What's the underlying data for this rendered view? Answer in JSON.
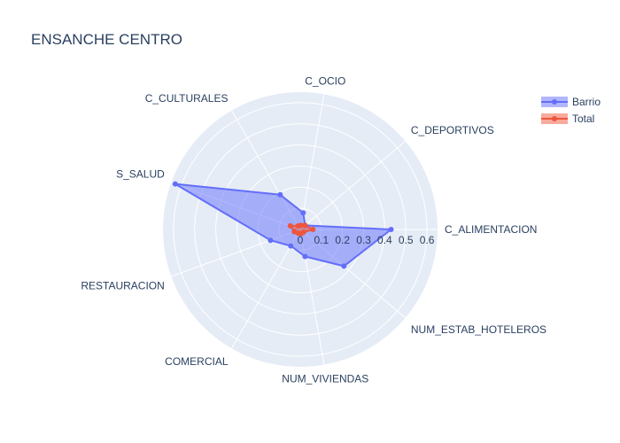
{
  "colors": {
    "plot_bg": "#e5ecf6",
    "grid": "#ffffff",
    "text": "#2a3f5f",
    "barrio": "#636efa",
    "total": "#ef553b"
  },
  "chart_data": {
    "type": "radar",
    "title": "ENSANCHE CENTRO",
    "categories": [
      "C_ALIMENTACION",
      "C_DEPORTIVOS",
      "C_OCIO",
      "C_CULTURALES",
      "S_SALUD",
      "RESTAURACION",
      "COMERCIAL",
      "NUM_VIVIENDAS",
      "NUM_ESTAB_HOTELEROS"
    ],
    "radial_ticks": [
      "0",
      "0.1",
      "0.2",
      "0.3",
      "0.4",
      "0.5",
      "0.6"
    ],
    "rlim": [
      0,
      0.65
    ],
    "grid": true,
    "legend_position": "top-right",
    "series": [
      {
        "name": "Barrio",
        "color": "#636efa",
        "fill": true,
        "values": [
          0.43,
          0.03,
          0.08,
          0.19,
          0.63,
          0.15,
          0.09,
          0.13,
          0.27
        ]
      },
      {
        "name": "Total",
        "color": "#ef553b",
        "fill": true,
        "values": [
          0.06,
          0.03,
          0.02,
          0.02,
          0.05,
          0.03,
          0.02,
          0.02,
          0.02
        ]
      }
    ]
  }
}
